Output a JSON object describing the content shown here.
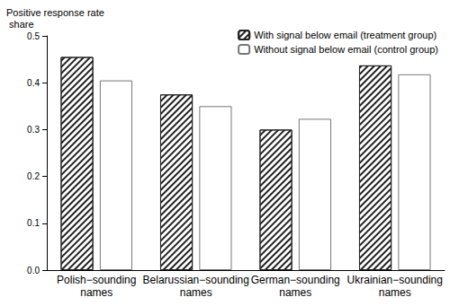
{
  "chart_data": {
    "type": "bar",
    "ylabel": "Positive response rate share",
    "categories": [
      "Polish−sounding names",
      "Belarussian−sounding names",
      "German−sounding names",
      "Ukrainian−sounding names"
    ],
    "series": [
      {
        "name": "With signal below email (treatment group)",
        "color": "#222222",
        "values": [
          0.455,
          0.375,
          0.3,
          0.437
        ]
      },
      {
        "name": "Without signal below email (control group)",
        "color": "#ffffff",
        "values": [
          0.405,
          0.35,
          0.323,
          0.418
        ]
      }
    ],
    "ylim": [
      0,
      0.5
    ],
    "yticks": [
      {
        "value": 0,
        "label": "0.0"
      },
      0.1,
      0.2,
      0.3,
      0.4,
      0.5
    ],
    "grid": false,
    "legend": "upper right"
  }
}
